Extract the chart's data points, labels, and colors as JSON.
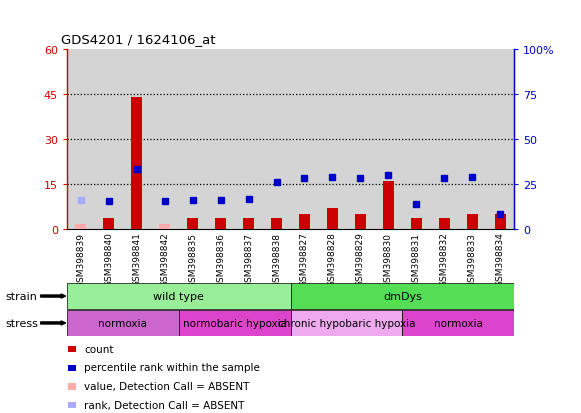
{
  "title": "GDS4201 / 1624106_at",
  "samples": [
    "GSM398839",
    "GSM398840",
    "GSM398841",
    "GSM398842",
    "GSM398835",
    "GSM398836",
    "GSM398837",
    "GSM398838",
    "GSM398827",
    "GSM398828",
    "GSM398829",
    "GSM398830",
    "GSM398831",
    "GSM398832",
    "GSM398833",
    "GSM398834"
  ],
  "count_values": [
    1.5,
    3.5,
    44,
    1.5,
    3.5,
    3.5,
    3.5,
    3.5,
    5,
    7,
    5,
    16,
    3.5,
    3.5,
    5,
    5
  ],
  "count_absent": [
    true,
    false,
    false,
    true,
    false,
    false,
    false,
    false,
    false,
    false,
    false,
    false,
    false,
    false,
    false,
    false
  ],
  "percentile_values": [
    16,
    15.5,
    33,
    15.5,
    16,
    16,
    16.5,
    26,
    28,
    29,
    28,
    30,
    14,
    28,
    29,
    8
  ],
  "percentile_absent": [
    true,
    false,
    false,
    false,
    false,
    false,
    false,
    false,
    false,
    false,
    false,
    false,
    false,
    false,
    false,
    false
  ],
  "count_color": "#cc0000",
  "count_absent_color": "#ffaaaa",
  "percentile_color": "#0000cc",
  "percentile_absent_color": "#aaaaff",
  "ylim_left": [
    0,
    60
  ],
  "ylim_right": [
    0,
    100
  ],
  "yticks_left": [
    0,
    15,
    30,
    45,
    60
  ],
  "yticks_right": [
    0,
    25,
    50,
    75,
    100
  ],
  "ytick_labels_right": [
    "0",
    "25",
    "50",
    "75",
    "100%"
  ],
  "hlines": [
    15,
    30,
    45
  ],
  "strain_groups": [
    {
      "label": "wild type",
      "start": 0,
      "end": 8,
      "color": "#99ee99"
    },
    {
      "label": "dmDys",
      "start": 8,
      "end": 16,
      "color": "#55dd55"
    }
  ],
  "stress_groups": [
    {
      "label": "normoxia",
      "start": 0,
      "end": 4,
      "color": "#cc66cc"
    },
    {
      "label": "normobaric hypoxia",
      "start": 4,
      "end": 8,
      "color": "#dd44cc"
    },
    {
      "label": "chronic hypobaric hypoxia",
      "start": 8,
      "end": 12,
      "color": "#eeaaee"
    },
    {
      "label": "normoxia",
      "start": 12,
      "end": 16,
      "color": "#dd44cc"
    }
  ],
  "bar_width": 0.4,
  "col_bg_color": "#d4d4d4",
  "plot_bg": "#ffffff",
  "legend_items": [
    {
      "label": "count",
      "color": "#cc0000"
    },
    {
      "label": "percentile rank within the sample",
      "color": "#0000cc"
    },
    {
      "label": "value, Detection Call = ABSENT",
      "color": "#ffaaaa"
    },
    {
      "label": "rank, Detection Call = ABSENT",
      "color": "#aaaaff"
    }
  ]
}
